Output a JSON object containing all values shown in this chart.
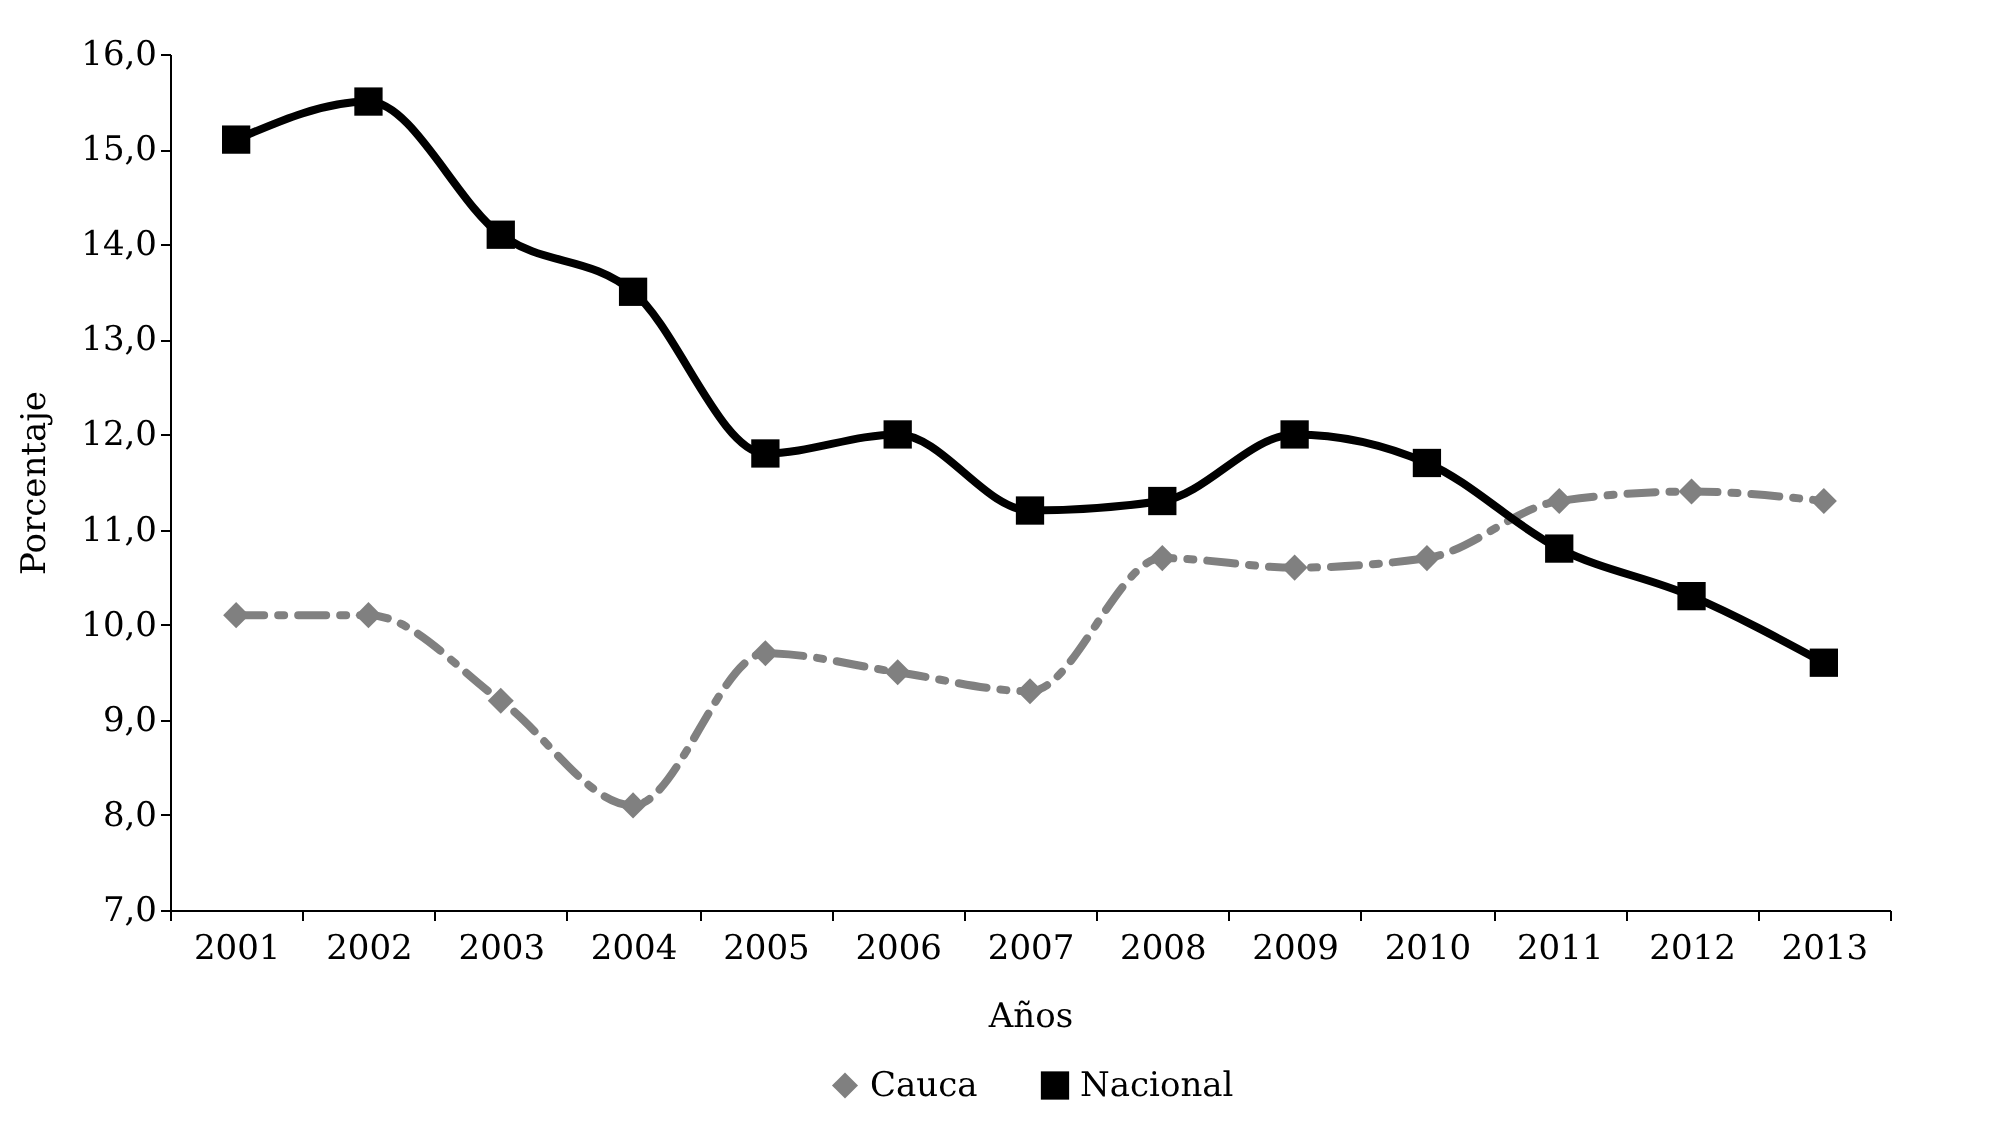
{
  "chart_data": {
    "type": "line",
    "xlabel": "Años",
    "ylabel": "Porcentaje",
    "categories": [
      "2001",
      "2002",
      "2003",
      "2004",
      "2005",
      "2006",
      "2007",
      "2008",
      "2009",
      "2010",
      "2011",
      "2012",
      "2013"
    ],
    "ylim": [
      7,
      16
    ],
    "yticks": [
      {
        "value": 7,
        "label": "7,0"
      },
      {
        "value": 8,
        "label": "8,0"
      },
      {
        "value": 9,
        "label": "9,0"
      },
      {
        "value": 10,
        "label": "10,0"
      },
      {
        "value": 11,
        "label": "11,0"
      },
      {
        "value": 12,
        "label": "12,0"
      },
      {
        "value": 13,
        "label": "13,0"
      },
      {
        "value": 14,
        "label": "14,0"
      },
      {
        "value": 15,
        "label": "15,0"
      },
      {
        "value": 16,
        "label": "16,0"
      }
    ],
    "grid": false,
    "legend": "bottom",
    "series": [
      {
        "name": "Cauca",
        "color": "#808080",
        "marker": "diamond",
        "line_style": "dashed",
        "values": [
          10.1,
          10.1,
          9.2,
          8.1,
          9.7,
          9.5,
          9.3,
          10.7,
          10.6,
          10.7,
          11.3,
          11.4,
          11.3
        ]
      },
      {
        "name": "Nacional",
        "color": "#000000",
        "marker": "square",
        "line_style": "solid",
        "values": [
          15.1,
          15.5,
          14.1,
          13.5,
          11.8,
          12.0,
          11.2,
          11.3,
          12.0,
          11.7,
          10.8,
          10.3,
          9.6
        ]
      }
    ]
  }
}
